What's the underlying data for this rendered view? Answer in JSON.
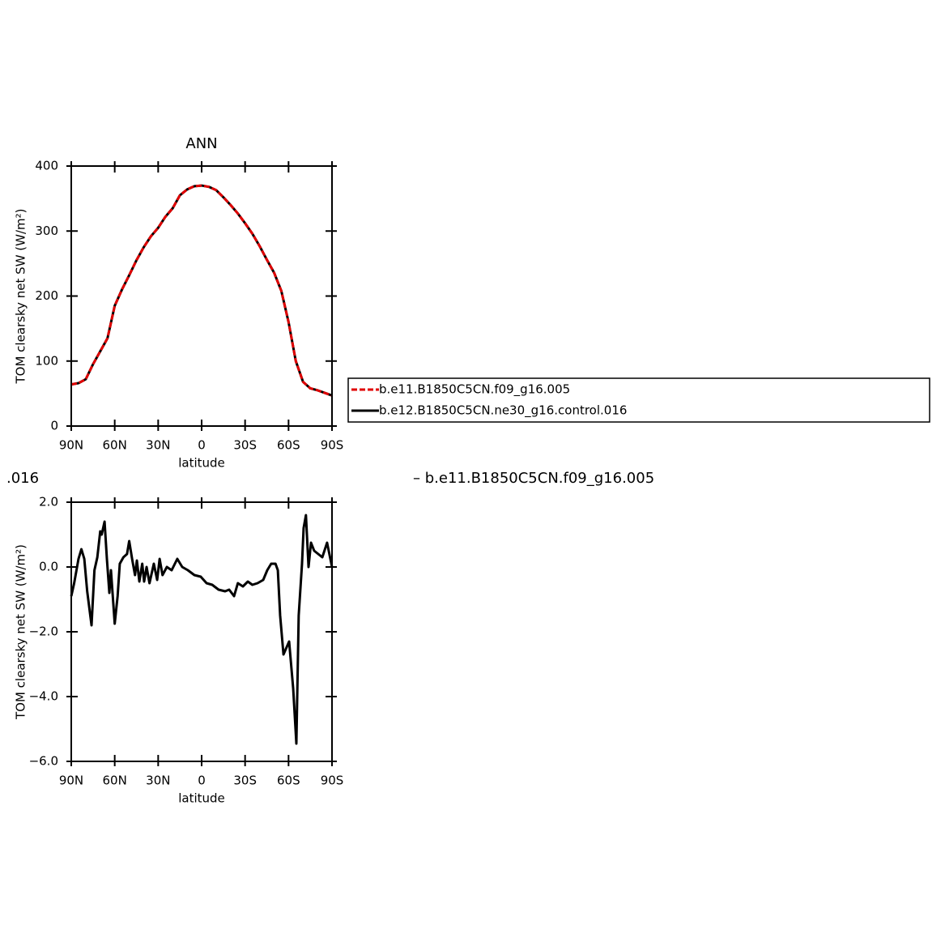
{
  "chart_data": [
    {
      "type": "line",
      "title": "ANN",
      "xlabel": "latitude",
      "ylabel": "TOM clearsky net SW (W/m²)",
      "x": [
        90,
        85,
        80,
        75,
        70,
        65,
        60,
        55,
        50,
        45,
        40,
        35,
        30,
        25,
        20,
        15,
        10,
        5,
        0,
        -5,
        -10,
        -15,
        -20,
        -25,
        -30,
        -35,
        -40,
        -45,
        -50,
        -55,
        -60,
        -65,
        -70,
        -75,
        -80,
        -85,
        -90
      ],
      "series": [
        {
          "name": "b.e11.B1850C5CN.f09_g16.005",
          "color": "#e00000",
          "dash": true,
          "values": [
            64,
            66,
            72,
            95,
            115,
            135,
            185,
            210,
            232,
            255,
            275,
            292,
            305,
            322,
            335,
            355,
            364,
            369,
            370,
            368,
            363,
            352,
            340,
            327,
            312,
            296,
            277,
            256,
            236,
            208,
            160,
            100,
            68,
            58,
            55,
            51,
            47
          ]
        },
        {
          "name": "b.e12.B1850C5CN.ne30_g16.control.016",
          "color": "#000000",
          "dash": false,
          "values": [
            64,
            66,
            72,
            95,
            115,
            135,
            185,
            210,
            232,
            255,
            275,
            292,
            305,
            322,
            335,
            355,
            364,
            369,
            370,
            368,
            363,
            352,
            340,
            327,
            312,
            296,
            277,
            256,
            236,
            208,
            160,
            100,
            68,
            58,
            55,
            51,
            47
          ]
        }
      ],
      "xlim": [
        90,
        -90
      ],
      "xticks": [
        {
          "value": 90,
          "label": "90N"
        },
        {
          "value": 60,
          "label": "60N"
        },
        {
          "value": 30,
          "label": "30N"
        },
        0,
        {
          "value": -30,
          "label": "30S"
        },
        {
          "value": -60,
          "label": "60S"
        },
        {
          "value": -90,
          "label": "90S"
        }
      ],
      "ylim": [
        0,
        400
      ],
      "yticks": [
        0,
        100,
        200,
        300,
        400
      ],
      "legend": "right"
    },
    {
      "type": "line",
      "xlabel": "latitude",
      "ylabel": "TOM clearsky net SW (W/m²)",
      "x": [
        90,
        88,
        85,
        83,
        81,
        79,
        76,
        74,
        72,
        70,
        69,
        67,
        65.4,
        63.7,
        62.6,
        60,
        58,
        56.5,
        54,
        51.5,
        50,
        48,
        46,
        44.7,
        43,
        41,
        39.7,
        38,
        36,
        33,
        30.7,
        29,
        27,
        24,
        20.7,
        16.8,
        13.4,
        9.5,
        5,
        0.6,
        -3.4,
        -7.3,
        -11.7,
        -16.2,
        -19,
        -22.4,
        -25,
        -28.5,
        -31.9,
        -35,
        -38.6,
        -42.5,
        -45.3,
        -48,
        -51,
        -52.6,
        -54.2,
        -56.5,
        -60.4,
        -63.2,
        -65.4,
        -67,
        -69.3,
        -70.4,
        -72,
        -73.8,
        -75.5,
        -77.7,
        -83.3,
        -86.6,
        -90
      ],
      "series": [
        {
          "name": "b.e12.B1850C5CN.ne30_g16.control.016",
          "color": "#000000",
          "dash": false,
          "values": [
            -0.9,
            -0.5,
            0.25,
            0.55,
            0.25,
            -0.75,
            -1.8,
            -0.1,
            0.3,
            1.1,
            1.0,
            1.4,
            0.25,
            -0.8,
            -0.1,
            -1.75,
            -0.9,
            0.1,
            0.3,
            0.4,
            0.8,
            0.25,
            -0.25,
            0.2,
            -0.45,
            0.1,
            -0.45,
            0,
            -0.5,
            0.1,
            -0.4,
            0.25,
            -0.25,
            0,
            -0.1,
            0.25,
            0,
            -0.1,
            -0.25,
            -0.3,
            -0.5,
            -0.55,
            -0.7,
            -0.75,
            -0.7,
            -0.9,
            -0.5,
            -0.6,
            -0.45,
            -0.55,
            -0.5,
            -0.4,
            -0.1,
            0.1,
            0.1,
            -0.1,
            -1.5,
            -2.7,
            -2.3,
            -3.75,
            -5.45,
            -1.5,
            0.1,
            1.2,
            1.6,
            0,
            0.75,
            0.5,
            0.3,
            0.75,
            0
          ]
        }
      ],
      "xlim": [
        90,
        -90
      ],
      "xticks": [
        {
          "value": 90,
          "label": "90N"
        },
        {
          "value": 60,
          "label": "60N"
        },
        {
          "value": 30,
          "label": "30N"
        },
        0,
        {
          "value": -30,
          "label": "30S"
        },
        {
          "value": -60,
          "label": "60S"
        },
        {
          "value": -90,
          "label": "90S"
        }
      ],
      "ylim": [
        -6,
        2
      ],
      "yticks": [
        {
          "value": 2,
          "label": "2.0"
        },
        {
          "value": 0,
          "label": "0.0"
        },
        {
          "value": -2,
          "label": "−2.0"
        },
        {
          "value": -4,
          "label": "−4.0"
        },
        {
          "value": -6,
          "label": "−6.0"
        }
      ]
    }
  ],
  "annotations": [
    ".016",
    "– b.e11.B1850C5CN.f09_g16.005"
  ]
}
